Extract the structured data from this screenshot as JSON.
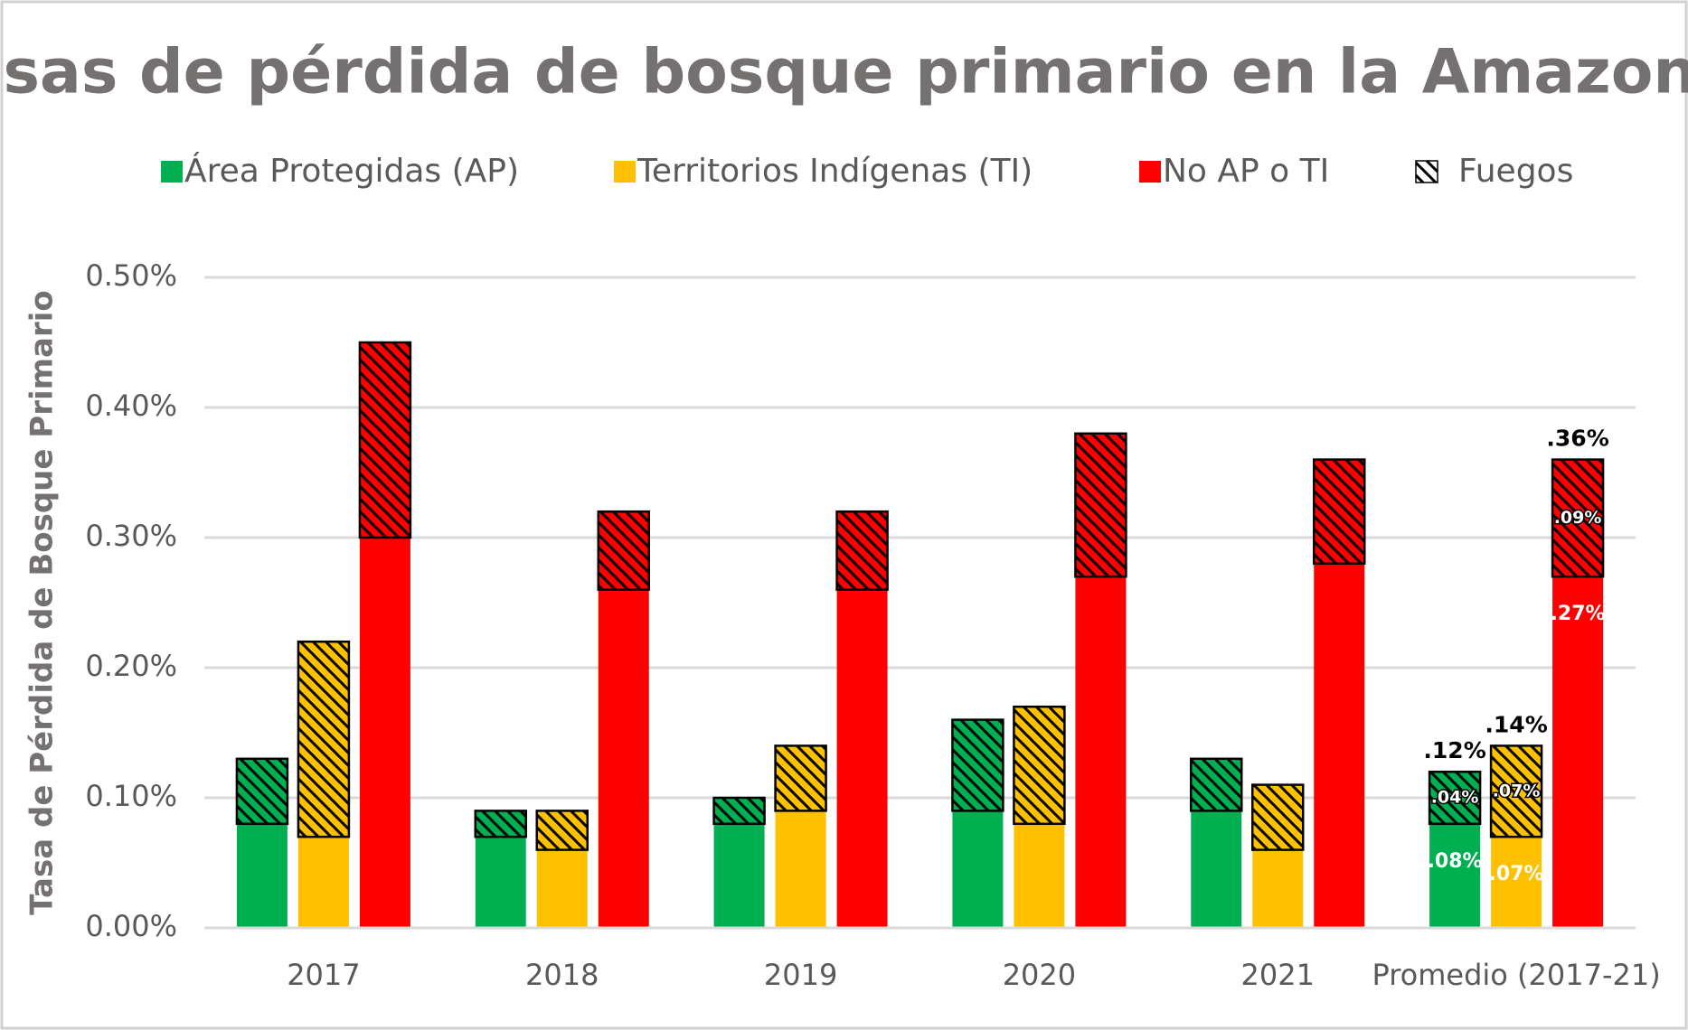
{
  "chart_data": {
    "type": "stacked_grouped_bar",
    "title": "Tasas de pérdida de bosque primario en la Amazonía",
    "y_label": "Tasa de Pérdida de Bosque Primario",
    "categories": [
      "2017",
      "2018",
      "2019",
      "2020",
      "2021",
      "Promedio (2017-21)"
    ],
    "fire_label": "Fuegos",
    "series": [
      {
        "name": "Área Protegidas (AP)",
        "color": "#00b050",
        "values": [
          0.08,
          0.07,
          0.08,
          0.09,
          0.09,
          0.08
        ],
        "value_labels": [
          null,
          null,
          null,
          null,
          null,
          ".08%"
        ],
        "fire": [
          0.05,
          0.02,
          0.02,
          0.07,
          0.04,
          0.04
        ],
        "fire_labels": [
          null,
          null,
          null,
          null,
          null,
          ".04%"
        ],
        "totals": [
          null,
          null,
          null,
          null,
          null,
          0.12
        ],
        "total_labels": [
          null,
          null,
          null,
          null,
          null,
          ".12%"
        ]
      },
      {
        "name": "Territorios Indígenas (TI)",
        "color": "#ffc000",
        "values": [
          0.07,
          0.06,
          0.09,
          0.08,
          0.06,
          0.07
        ],
        "value_labels": [
          null,
          null,
          null,
          null,
          null,
          ".07%"
        ],
        "fire": [
          0.15,
          0.03,
          0.05,
          0.09,
          0.05,
          0.07
        ],
        "fire_labels": [
          null,
          null,
          null,
          null,
          null,
          ".07%"
        ],
        "totals": [
          null,
          null,
          null,
          null,
          null,
          0.14
        ],
        "total_labels": [
          null,
          null,
          null,
          null,
          null,
          ".14%"
        ]
      },
      {
        "name": "No AP o TI",
        "color": "#ff0000",
        "values": [
          0.3,
          0.26,
          0.26,
          0.27,
          0.28,
          0.27
        ],
        "value_labels": [
          null,
          null,
          null,
          null,
          null,
          ".27%"
        ],
        "fire": [
          0.15,
          0.06,
          0.06,
          0.11,
          0.08,
          0.09
        ],
        "fire_labels": [
          null,
          null,
          null,
          null,
          null,
          ".09%"
        ],
        "totals": [
          null,
          null,
          null,
          null,
          null,
          0.36
        ],
        "total_labels": [
          null,
          null,
          null,
          null,
          null,
          ".36%"
        ]
      }
    ],
    "ylim": [
      0,
      0.5
    ],
    "yticks": [
      {
        "value": 0,
        "label": "0.00%"
      },
      {
        "value": 0.1,
        "label": "0.10%"
      },
      {
        "value": 0.2,
        "label": "0.20%"
      },
      {
        "value": 0.3,
        "label": "0.30%"
      },
      {
        "value": 0.4,
        "label": "0.40%"
      },
      {
        "value": 0.5,
        "label": "0.50%"
      }
    ],
    "grid": true
  }
}
